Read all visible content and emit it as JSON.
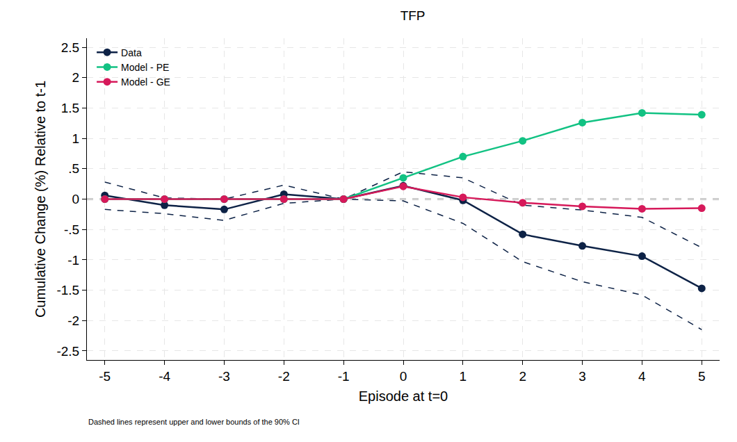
{
  "chart_data": {
    "type": "line",
    "title": "TFP",
    "x_label": "Episode at t=0",
    "y_label": "Cumulative Change (%) Relative to t-1",
    "note": "Dashed lines represent upper and lower bounds of the 90% CI",
    "x": [
      -5,
      -4,
      -3,
      -2,
      -1,
      0,
      1,
      2,
      3,
      4,
      5
    ],
    "series": [
      {
        "name": "Data",
        "color": "#0d2246",
        "marker": "circle",
        "line_style": "solid",
        "values": [
          0.06,
          -0.1,
          -0.17,
          0.08,
          0,
          0.22,
          -0.02,
          -0.58,
          -0.77,
          -0.94,
          -1.47
        ],
        "upper": [
          0.28,
          0.02,
          0.0,
          0.23,
          0,
          0.45,
          0.35,
          -0.1,
          -0.18,
          -0.3,
          -0.8
        ],
        "lower": [
          -0.17,
          -0.24,
          -0.35,
          -0.07,
          0,
          -0.03,
          -0.4,
          -1.03,
          -1.36,
          -1.58,
          -2.15
        ]
      },
      {
        "name": "Model - PE",
        "color": "#12c283",
        "marker": "circle",
        "line_style": "solid",
        "values": [
          0,
          0,
          0,
          0,
          0,
          0.35,
          0.7,
          0.96,
          1.26,
          1.42,
          1.39
        ]
      },
      {
        "name": "Model - GE",
        "color": "#d6195a",
        "marker": "circle",
        "line_style": "solid",
        "values": [
          0,
          0,
          0,
          0,
          0,
          0.21,
          0.03,
          -0.06,
          -0.12,
          -0.16,
          -0.15
        ]
      }
    ],
    "hline": 0,
    "xlim": [
      -5.3,
      5.3
    ],
    "xticks": [
      -5,
      -4,
      -3,
      -2,
      -1,
      0,
      1,
      2,
      3,
      4,
      5
    ],
    "ylim": [
      -2.65,
      2.65
    ],
    "yticks": [
      -2.5,
      -2,
      -1.5,
      -1,
      {
        "value": -0.5,
        "label": "-.5"
      },
      0,
      {
        "value": 0.5,
        "label": ".5"
      },
      1,
      1.5,
      2,
      2.5
    ],
    "grid": true,
    "legend": "top-left"
  }
}
